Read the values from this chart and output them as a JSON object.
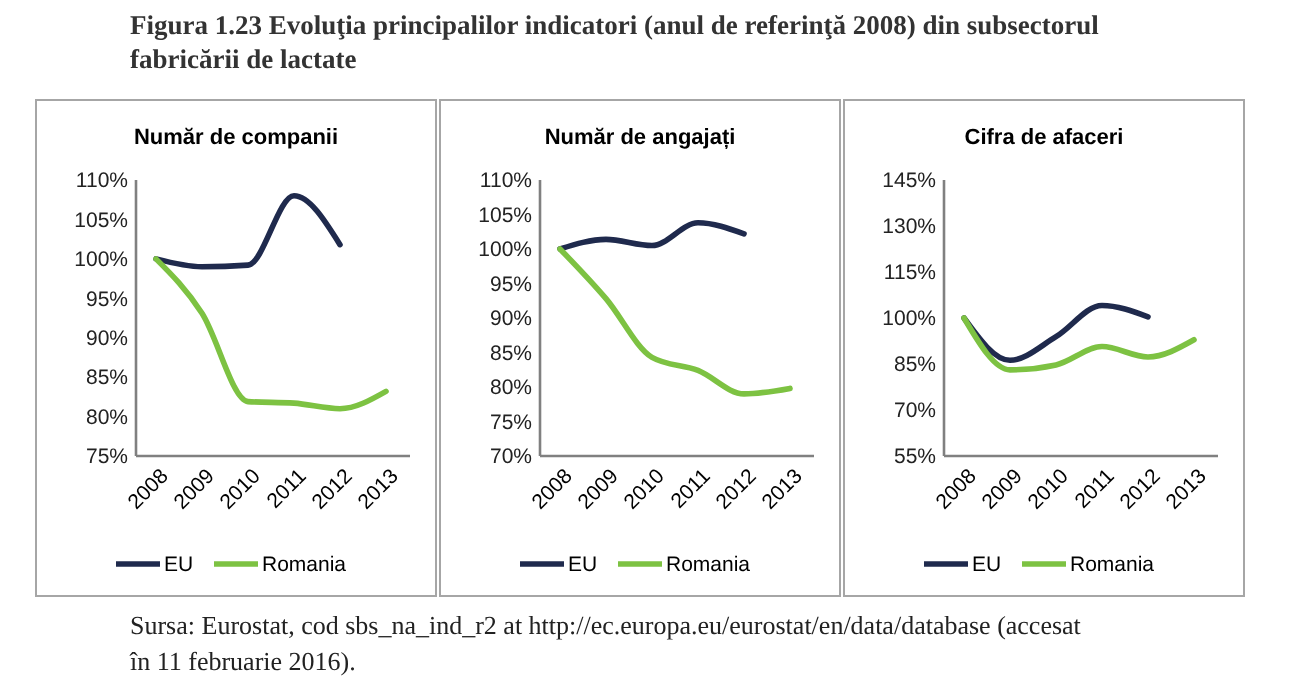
{
  "chart_data": [
    {
      "type": "line",
      "title": "Număr de companii",
      "categories": [
        "2008",
        "2009",
        "2010",
        "2011",
        "2012",
        "2013"
      ],
      "series": [
        {
          "name": "EU",
          "color": "#1f2a4d",
          "values": [
            100,
            99.0,
            99.2,
            108,
            101.8,
            null
          ]
        },
        {
          "name": "Romania",
          "color": "#7dc242",
          "values": [
            100,
            93.1,
            81.9,
            81.7,
            81.0,
            83.2
          ]
        }
      ],
      "ylim": [
        75,
        110
      ],
      "yticks": [
        {
          "value": 75,
          "label": "75%"
        },
        {
          "value": 80,
          "label": "80%"
        },
        {
          "value": 85,
          "label": "85%"
        },
        {
          "value": 90,
          "label": "90%"
        },
        {
          "value": 95,
          "label": "95%"
        },
        {
          "value": 100,
          "label": "100%"
        },
        {
          "value": 105,
          "label": "105%"
        },
        {
          "value": 110,
          "label": "110%"
        }
      ],
      "legend": "bottom",
      "annotations": [
        "Figura 1.23 Evoluţia principalilor indicatori (anul de referinţă 2008) din subsectorul fabricării de lactate",
        "Sursa: Eurostat, cod sbs_na_ind_r2 at http://ec.europa.eu/eurostat/en/data/database (accesat în 11 februarie 2016)."
      ]
    },
    {
      "type": "line",
      "title": "Număr de angajați",
      "categories": [
        "2008",
        "2009",
        "2010",
        "2011",
        "2012",
        "2013"
      ],
      "series": [
        {
          "name": "EU",
          "color": "#1f2a4d",
          "values": [
            100,
            101.4,
            100.5,
            103.8,
            102.2,
            null
          ]
        },
        {
          "name": "Romania",
          "color": "#7dc242",
          "values": [
            100,
            92.8,
            84.3,
            82.4,
            79.0,
            79.8
          ]
        }
      ],
      "ylim": [
        70,
        110
      ],
      "yticks": [
        {
          "value": 70,
          "label": "70%"
        },
        {
          "value": 75,
          "label": "75%"
        },
        {
          "value": 80,
          "label": "80%"
        },
        {
          "value": 85,
          "label": "85%"
        },
        {
          "value": 90,
          "label": "90%"
        },
        {
          "value": 95,
          "label": "95%"
        },
        {
          "value": 100,
          "label": "100%"
        },
        {
          "value": 105,
          "label": "105%"
        },
        {
          "value": 110,
          "label": "110%"
        }
      ],
      "legend": "bottom"
    },
    {
      "type": "line",
      "title": "Cifra de afaceri",
      "categories": [
        "2008",
        "2009",
        "2010",
        "2011",
        "2012",
        "2013"
      ],
      "series": [
        {
          "name": "EU",
          "color": "#1f2a4d",
          "values": [
            100,
            86.2,
            93.9,
            104.1,
            100.4,
            null
          ]
        },
        {
          "name": "Romania",
          "color": "#7dc242",
          "values": [
            100,
            83.1,
            84.7,
            90.7,
            87.3,
            92.9
          ]
        }
      ],
      "ylim": [
        55,
        145
      ],
      "yticks": [
        {
          "value": 55,
          "label": "55%"
        },
        {
          "value": 70,
          "label": "70%"
        },
        {
          "value": 85,
          "label": "85%"
        },
        {
          "value": 100,
          "label": "100%"
        },
        {
          "value": 115,
          "label": "115%"
        },
        {
          "value": 130,
          "label": "130%"
        },
        {
          "value": 145,
          "label": "145%"
        }
      ],
      "legend": "bottom"
    }
  ]
}
